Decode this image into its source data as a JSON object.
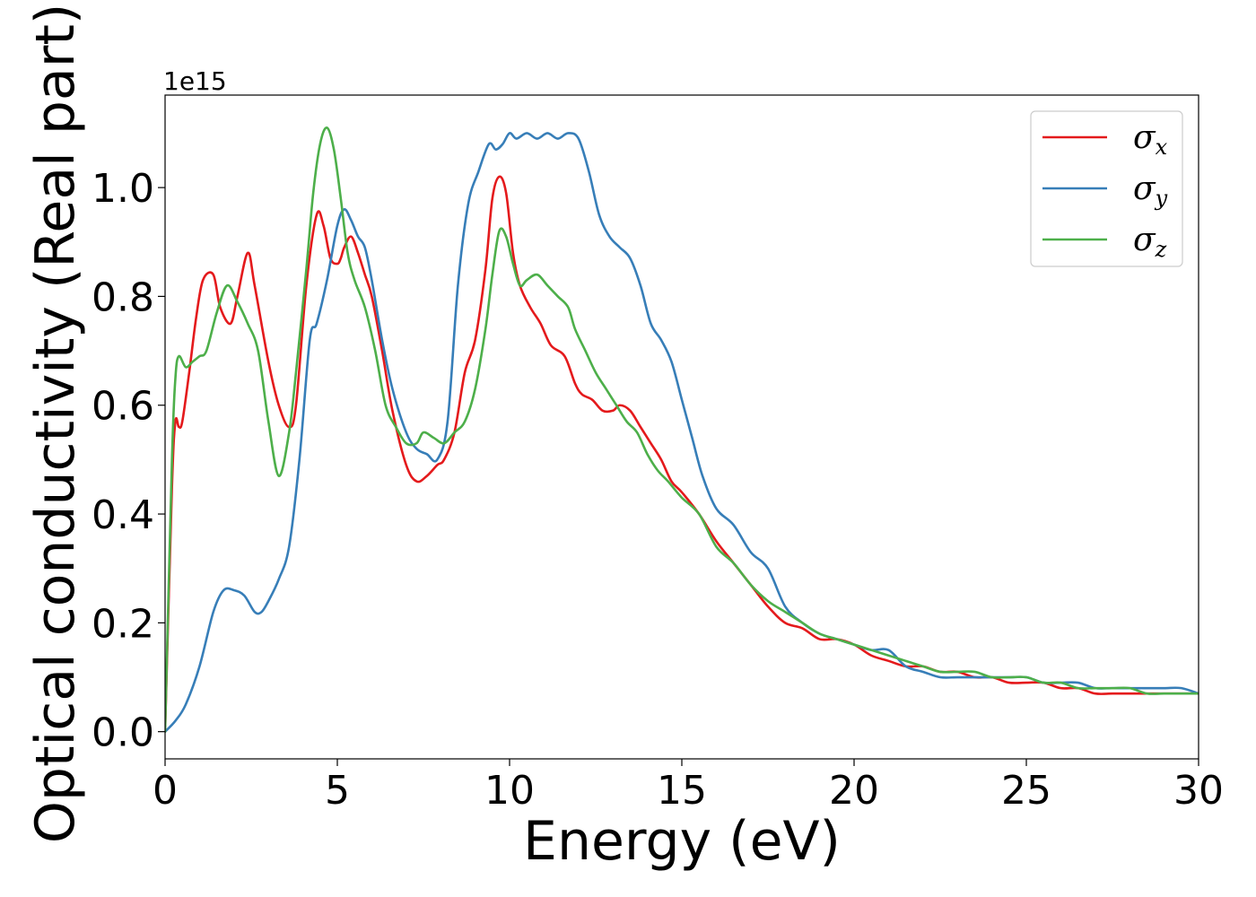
{
  "chart_data": {
    "type": "line",
    "title": "",
    "xlabel": "Energy (eV)",
    "ylabel": "Optical conductivity (Real part)",
    "y_offset_label": "1e15",
    "xlim": [
      0,
      30
    ],
    "ylim": [
      -0.05,
      1.17
    ],
    "x_ticks": [
      0,
      5,
      10,
      15,
      20,
      25,
      30
    ],
    "x_tick_labels": [
      "0",
      "5",
      "10",
      "15",
      "20",
      "25",
      "30"
    ],
    "y_ticks": [
      0.0,
      0.2,
      0.4,
      0.6,
      0.8,
      1.0
    ],
    "y_tick_labels": [
      "0.0",
      "0.2",
      "0.4",
      "0.6",
      "0.8",
      "1.0"
    ],
    "grid": false,
    "legend_position": "top-right",
    "series": [
      {
        "name": "σx",
        "legend_symbol": "σ",
        "legend_subscript": "x",
        "color": "#e41a1c",
        "x": [
          0,
          0.2,
          0.3,
          0.4,
          0.5,
          0.7,
          0.9,
          1.1,
          1.4,
          1.6,
          1.9,
          2.1,
          2.4,
          2.6,
          3.0,
          3.3,
          3.6,
          3.8,
          4.1,
          4.4,
          4.6,
          4.8,
          5.0,
          5.1,
          5.2,
          5.4,
          5.6,
          5.8,
          6.0,
          6.3,
          6.6,
          7.0,
          7.3,
          7.6,
          7.9,
          8.1,
          8.4,
          8.7,
          9.0,
          9.3,
          9.5,
          9.7,
          9.9,
          10.1,
          10.3,
          10.6,
          10.9,
          11.2,
          11.6,
          11.9,
          12.1,
          12.4,
          12.7,
          13.0,
          13.2,
          13.5,
          13.8,
          14.1,
          14.4,
          14.7,
          15.0,
          15.5,
          16.0,
          16.5,
          17.0,
          17.5,
          18.0,
          18.5,
          19.0,
          19.5,
          20.0,
          20.5,
          21.0,
          21.5,
          22.0,
          22.5,
          23.0,
          23.5,
          24.0,
          24.5,
          25.0,
          25.5,
          26.0,
          26.5,
          27.0,
          27.5,
          28.0,
          28.5,
          29.0,
          29.5,
          30.0
        ],
        "y": [
          0.0,
          0.45,
          0.57,
          0.56,
          0.57,
          0.66,
          0.76,
          0.83,
          0.84,
          0.78,
          0.75,
          0.8,
          0.88,
          0.82,
          0.68,
          0.6,
          0.56,
          0.6,
          0.82,
          0.95,
          0.93,
          0.87,
          0.86,
          0.87,
          0.89,
          0.91,
          0.88,
          0.84,
          0.8,
          0.7,
          0.59,
          0.49,
          0.46,
          0.47,
          0.49,
          0.5,
          0.55,
          0.66,
          0.72,
          0.85,
          0.98,
          1.02,
          0.99,
          0.88,
          0.82,
          0.78,
          0.75,
          0.71,
          0.69,
          0.64,
          0.62,
          0.61,
          0.59,
          0.59,
          0.6,
          0.59,
          0.56,
          0.53,
          0.5,
          0.46,
          0.44,
          0.4,
          0.35,
          0.31,
          0.27,
          0.23,
          0.2,
          0.19,
          0.17,
          0.17,
          0.16,
          0.14,
          0.13,
          0.12,
          0.12,
          0.11,
          0.11,
          0.1,
          0.1,
          0.09,
          0.09,
          0.09,
          0.08,
          0.08,
          0.07,
          0.07,
          0.07,
          0.07,
          0.07,
          0.07,
          0.07
        ]
      },
      {
        "name": "σy",
        "legend_symbol": "σ",
        "legend_subscript": "y",
        "color": "#377eb8",
        "x": [
          0,
          0.3,
          0.6,
          1.0,
          1.4,
          1.7,
          2.0,
          2.3,
          2.6,
          2.8,
          3.0,
          3.3,
          3.6,
          3.9,
          4.2,
          4.4,
          4.7,
          5.0,
          5.2,
          5.4,
          5.6,
          5.8,
          6.0,
          6.3,
          6.6,
          7.0,
          7.3,
          7.6,
          7.9,
          8.2,
          8.5,
          8.8,
          9.1,
          9.4,
          9.6,
          9.8,
          10.0,
          10.2,
          10.5,
          10.8,
          11.1,
          11.4,
          11.7,
          12.0,
          12.3,
          12.6,
          12.9,
          13.2,
          13.5,
          13.8,
          14.1,
          14.4,
          14.7,
          15.0,
          15.3,
          15.6,
          16.0,
          16.5,
          17.0,
          17.5,
          18.0,
          18.5,
          19.0,
          19.5,
          20.0,
          20.5,
          21.0,
          21.5,
          22.0,
          22.5,
          23.0,
          23.5,
          24.0,
          24.5,
          25.0,
          25.5,
          26.0,
          26.5,
          27.0,
          27.5,
          28.0,
          28.5,
          29.0,
          29.5,
          30.0
        ],
        "y": [
          0.0,
          0.02,
          0.05,
          0.12,
          0.22,
          0.26,
          0.26,
          0.25,
          0.22,
          0.22,
          0.24,
          0.28,
          0.34,
          0.5,
          0.72,
          0.75,
          0.83,
          0.93,
          0.96,
          0.94,
          0.91,
          0.89,
          0.83,
          0.72,
          0.63,
          0.55,
          0.52,
          0.51,
          0.5,
          0.57,
          0.82,
          0.97,
          1.03,
          1.08,
          1.07,
          1.08,
          1.1,
          1.09,
          1.1,
          1.09,
          1.1,
          1.09,
          1.1,
          1.09,
          1.03,
          0.95,
          0.91,
          0.89,
          0.87,
          0.82,
          0.75,
          0.72,
          0.68,
          0.61,
          0.54,
          0.47,
          0.41,
          0.38,
          0.33,
          0.3,
          0.23,
          0.2,
          0.18,
          0.17,
          0.16,
          0.15,
          0.15,
          0.12,
          0.11,
          0.1,
          0.1,
          0.1,
          0.1,
          0.1,
          0.1,
          0.09,
          0.09,
          0.09,
          0.08,
          0.08,
          0.08,
          0.08,
          0.08,
          0.08,
          0.07
        ]
      },
      {
        "name": "σz",
        "legend_symbol": "σ",
        "legend_subscript": "z",
        "color": "#4daf4a",
        "x": [
          0,
          0.2,
          0.3,
          0.4,
          0.6,
          0.8,
          1.0,
          1.2,
          1.5,
          1.8,
          2.1,
          2.4,
          2.7,
          3.0,
          3.3,
          3.6,
          3.8,
          4.1,
          4.3,
          4.5,
          4.7,
          4.9,
          5.1,
          5.3,
          5.5,
          5.8,
          6.1,
          6.4,
          6.7,
          7.0,
          7.3,
          7.5,
          7.8,
          8.1,
          8.4,
          8.7,
          9.0,
          9.3,
          9.5,
          9.7,
          9.9,
          10.1,
          10.3,
          10.5,
          10.8,
          11.1,
          11.4,
          11.7,
          11.9,
          12.2,
          12.5,
          12.8,
          13.1,
          13.4,
          13.7,
          14.0,
          14.3,
          14.6,
          15.0,
          15.5,
          16.0,
          16.5,
          17.0,
          17.5,
          18.0,
          18.5,
          19.0,
          19.5,
          20.0,
          20.5,
          21.0,
          21.5,
          22.0,
          22.5,
          23.0,
          23.5,
          24.0,
          24.5,
          25.0,
          25.5,
          26.0,
          26.5,
          27.0,
          27.5,
          28.0,
          28.5,
          29.0,
          29.5,
          30.0
        ],
        "y": [
          0.0,
          0.5,
          0.65,
          0.69,
          0.67,
          0.68,
          0.69,
          0.7,
          0.77,
          0.82,
          0.79,
          0.75,
          0.7,
          0.57,
          0.47,
          0.55,
          0.66,
          0.85,
          0.99,
          1.08,
          1.11,
          1.07,
          0.98,
          0.88,
          0.83,
          0.78,
          0.7,
          0.6,
          0.56,
          0.53,
          0.53,
          0.55,
          0.54,
          0.53,
          0.55,
          0.57,
          0.63,
          0.74,
          0.84,
          0.92,
          0.91,
          0.86,
          0.82,
          0.83,
          0.84,
          0.82,
          0.8,
          0.78,
          0.74,
          0.7,
          0.66,
          0.63,
          0.6,
          0.57,
          0.55,
          0.51,
          0.48,
          0.46,
          0.43,
          0.4,
          0.34,
          0.31,
          0.27,
          0.24,
          0.22,
          0.2,
          0.18,
          0.17,
          0.16,
          0.15,
          0.14,
          0.13,
          0.12,
          0.11,
          0.11,
          0.11,
          0.1,
          0.1,
          0.1,
          0.09,
          0.09,
          0.08,
          0.08,
          0.08,
          0.08,
          0.07,
          0.07,
          0.07,
          0.07
        ]
      }
    ]
  }
}
